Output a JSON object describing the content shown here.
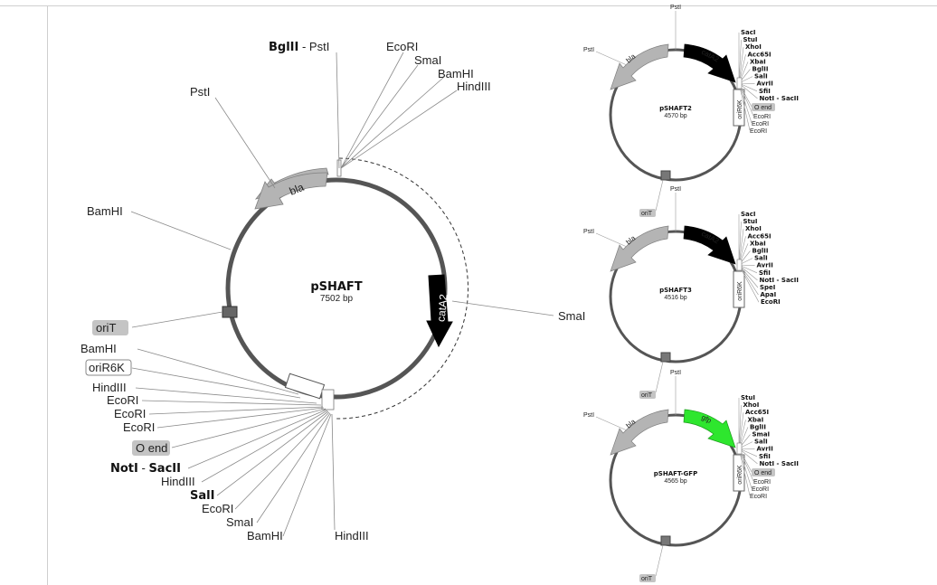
{
  "main": {
    "name": "pSHAFT",
    "size": "7502 bp",
    "features": {
      "bla": "bla",
      "catA2": "catA2",
      "oriT": "oriT",
      "oriR6K": "oriR6K",
      "o_end": "O end"
    },
    "sites": {
      "bglii": "BglII",
      "dash": " - ",
      "psti_top": "PstI",
      "ecori_top": "EcoRI",
      "smai_top": "SmaI",
      "bamhi_top": "BamHI",
      "hindiii_top": "HindIII",
      "psti_left": "PstI",
      "bamhi_left": "BamHI",
      "smai_right": "SmaI",
      "bamhi_2": "BamHI",
      "hindiii_2": "HindIII",
      "ecori_2": "EcoRI",
      "ecori_3": "EcoRI",
      "ecori_4": "EcoRI",
      "noti": "NotI",
      "sacii": "SacII",
      "hindiii_3": "HindIII",
      "sali": "SalI",
      "ecori_5": "EcoRI",
      "smai_2": "SmaI",
      "bamhi_3": "BamHI",
      "hindiii_bottom": "HindIII"
    }
  },
  "p2": {
    "name": "pSHAFT2",
    "size": "4570 bp",
    "features": {
      "bla": "bla",
      "cat": "catA2",
      "oriR6K": "oriR6K",
      "oriT": "oriT",
      "o_end": "O end"
    },
    "top_site": "PstI",
    "left_site": "PstI",
    "mcs": [
      "SacI",
      "StuI",
      "XhoI",
      "Acc65I",
      "XbaI",
      "BglII",
      "SalI",
      "AvrII",
      "SfiI",
      "NotI - SacII"
    ],
    "after": [
      "EcoRI",
      "EcoRI",
      "EcoRI"
    ]
  },
  "p3": {
    "name": "pSHAFT3",
    "size": "4516 bp",
    "features": {
      "bla": "bla",
      "cat": "catA2",
      "oriR6K": "oriR6K",
      "oriT": "oriT"
    },
    "top_site": "PstI",
    "left_site": "PstI",
    "mcs": [
      "SacI",
      "StuI",
      "XhoI",
      "Acc65I",
      "XbaI",
      "BglII",
      "SalI",
      "AvrII",
      "SfiI",
      "NotI - SacII",
      "SpeI",
      "ApaI",
      "EcoRI"
    ]
  },
  "pg": {
    "name": "pSHAFT-GFP",
    "size": "4565 bp",
    "features": {
      "bla": "bla",
      "gfp": "gfp",
      "oriR6K": "oriR6K",
      "oriT": "oriT",
      "o_end": "O end"
    },
    "top_site": "PstI",
    "left_site": "PstI",
    "mcs": [
      "StuI",
      "XhoI",
      "Acc65I",
      "XbaI",
      "BglII",
      "SmaI",
      "SalI",
      "AvrII",
      "SfiI",
      "NotI - SacII"
    ],
    "after": [
      "EcoRI",
      "EcoRI",
      "EcoRI"
    ]
  },
  "colors": {
    "backbone": "#555555",
    "bla": "#b4b4b4",
    "cat": "#000000",
    "gfp": "#2ee62e",
    "label_box": "#c4c4c4"
  }
}
